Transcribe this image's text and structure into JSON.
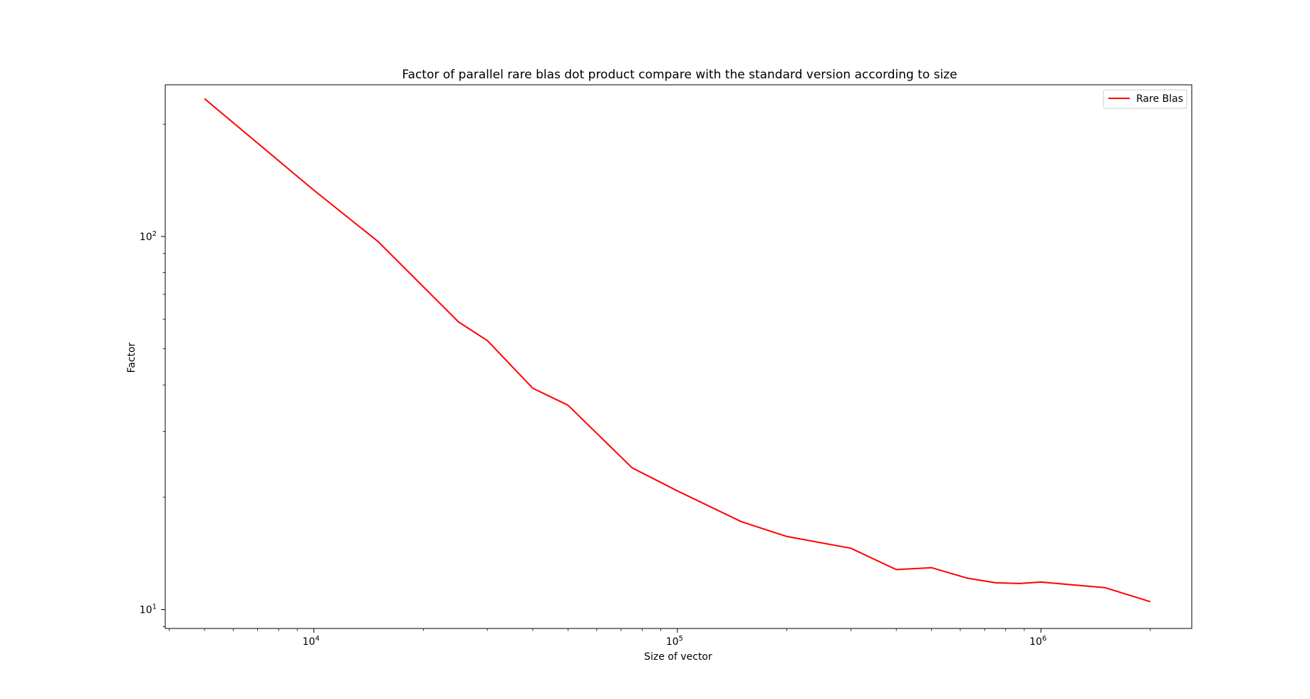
{
  "chart_data": {
    "type": "line",
    "title": "Factor of parallel rare blas dot product compare with the standard version according to size",
    "xlabel": "Size of vector",
    "ylabel": "Factor",
    "xscale": "log",
    "yscale": "log",
    "xlim": [
      3900,
      2600000
    ],
    "ylim": [
      8.9,
      255
    ],
    "x_major_ticks": [
      {
        "value": 10000,
        "base": "10",
        "exp": "4"
      },
      {
        "value": 100000,
        "base": "10",
        "exp": "5"
      },
      {
        "value": 1000000,
        "base": "10",
        "exp": "6"
      }
    ],
    "y_major_ticks": [
      {
        "value": 10,
        "base": "10",
        "exp": "1"
      },
      {
        "value": 100,
        "base": "10",
        "exp": "2"
      }
    ],
    "grid": false,
    "legend": {
      "position": "top-right"
    },
    "series": [
      {
        "name": "Rare Blas",
        "color": "#ff0000",
        "x": [
          5000,
          10000,
          15000,
          25000,
          30000,
          40000,
          50000,
          75000,
          100000,
          150000,
          200000,
          300000,
          400000,
          500000,
          625000,
          750000,
          875000,
          1000000,
          1500000,
          2000000
        ],
        "y": [
          234,
          133,
          97,
          59,
          52.6,
          39.2,
          35.3,
          24.0,
          20.8,
          17.2,
          15.7,
          14.6,
          12.8,
          12.95,
          12.15,
          11.8,
          11.75,
          11.85,
          11.45,
          10.5
        ]
      }
    ]
  }
}
